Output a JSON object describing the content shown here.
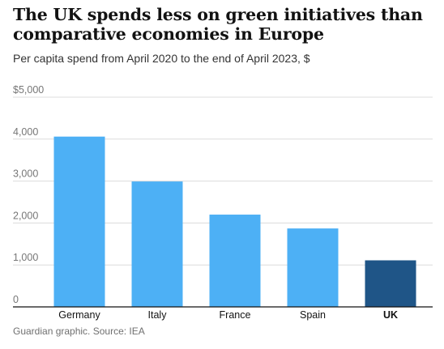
{
  "title": "The UK spends less on green initiatives than comparative economies in Europe",
  "subtitle": "Per capita spend from April 2020 to the end of April 2023, $",
  "footer": "Guardian graphic. Source: IEA",
  "colors": {
    "default_bar": "#4db0f5",
    "highlight_bar": "#1f5587",
    "grid": "#dcdcdc",
    "axis": "#121212"
  },
  "chart_data": {
    "type": "bar",
    "categories": [
      "Germany",
      "Italy",
      "France",
      "Spain",
      "UK"
    ],
    "values": [
      4060,
      2990,
      2200,
      1870,
      1110
    ],
    "highlight": "UK",
    "ylim": [
      0,
      5000
    ],
    "yticks": [
      0,
      1000,
      2000,
      3000,
      4000,
      5000
    ],
    "ytick_labels": [
      "0",
      "1,000",
      "2,000",
      "3,000",
      "4,000",
      "$5,000"
    ],
    "grid": true
  }
}
